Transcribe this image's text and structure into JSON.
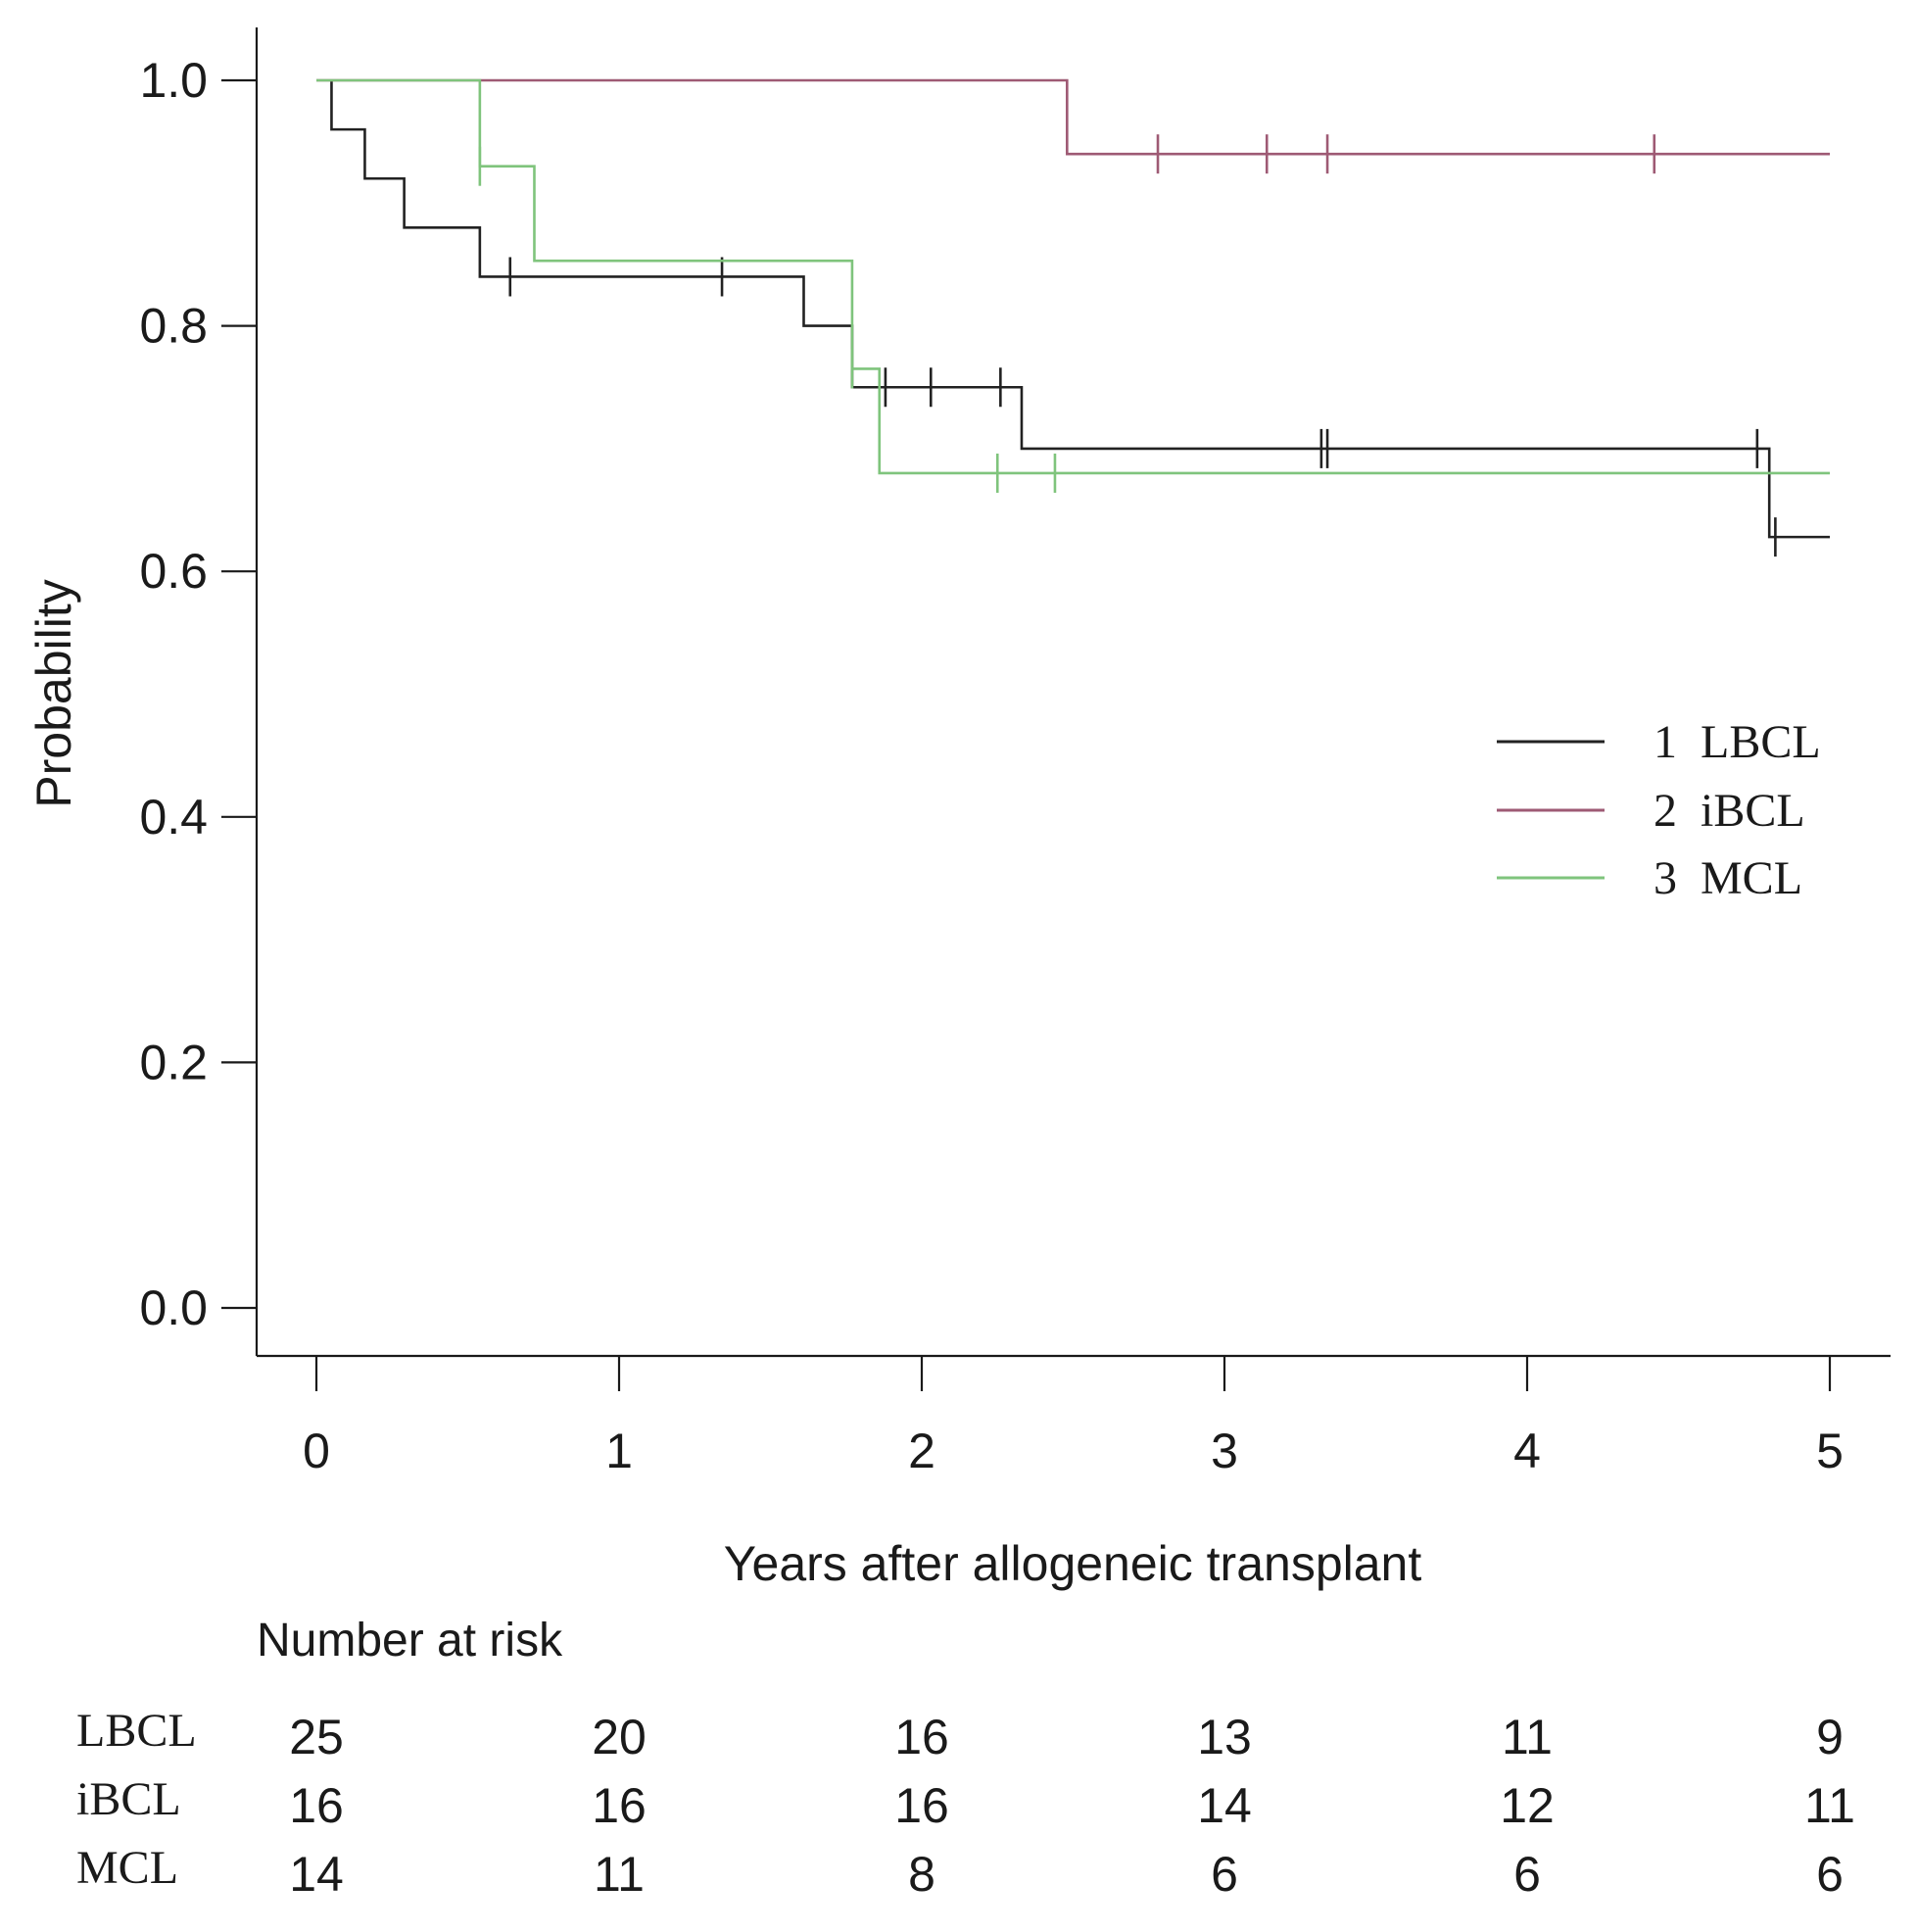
{
  "chart_data": {
    "type": "line",
    "subtype": "kaplan-meier",
    "title": "",
    "xlabel": "Years after allogeneic transplant",
    "ylabel": "Probability",
    "xlim": [
      0,
      5
    ],
    "ylim": [
      0,
      1
    ],
    "x_ticks": [
      0,
      1,
      2,
      3,
      4,
      5
    ],
    "y_ticks": [
      0.0,
      0.2,
      0.4,
      0.6,
      0.8,
      1.0
    ],
    "x_tick_labels": [
      "0",
      "1",
      "2",
      "3",
      "4",
      "5"
    ],
    "y_tick_labels": [
      "0.0",
      "0.2",
      "0.4",
      "0.6",
      "0.8",
      "1.0"
    ],
    "legend_position": "right-middle",
    "series": [
      {
        "name": "LBCL",
        "legend_label": "1  LBCL",
        "color": "#222222",
        "start": 0.05,
        "end": 5.0,
        "steps": [
          {
            "x": 0.05,
            "y": 1.0
          },
          {
            "x": 0.05,
            "y": 0.96
          },
          {
            "x": 0.16,
            "y": 0.92
          },
          {
            "x": 0.29,
            "y": 0.88
          },
          {
            "x": 0.54,
            "y": 0.84
          },
          {
            "x": 1.61,
            "y": 0.8
          },
          {
            "x": 1.77,
            "y": 0.75
          },
          {
            "x": 2.33,
            "y": 0.7
          },
          {
            "x": 4.8,
            "y": 0.628
          }
        ],
        "censored": [
          0.64,
          1.34,
          1.88,
          2.03,
          2.26,
          3.32,
          3.34,
          4.76,
          4.82
        ]
      },
      {
        "name": "iBCL",
        "legend_label": "2  iBCL",
        "color": "#9e5a74",
        "start": 0.0,
        "end": 5.0,
        "steps": [
          {
            "x": 0.0,
            "y": 1.0
          },
          {
            "x": 2.48,
            "y": 0.94
          }
        ],
        "censored": [
          2.78,
          3.14,
          3.34,
          4.42
        ]
      },
      {
        "name": "MCL",
        "legend_label": "3  MCL",
        "color": "#7fc47c",
        "start": 0.0,
        "end": 5.0,
        "steps": [
          {
            "x": 0.0,
            "y": 1.0
          },
          {
            "x": 0.54,
            "y": 0.93
          },
          {
            "x": 0.72,
            "y": 0.853
          },
          {
            "x": 1.77,
            "y": 0.765
          },
          {
            "x": 1.86,
            "y": 0.68
          }
        ],
        "censored": [
          0.54,
          1.77,
          2.25,
          2.44
        ]
      }
    ],
    "risk_table": {
      "title": "Number at risk",
      "times": [
        0,
        1,
        2,
        3,
        4,
        5
      ],
      "rows": [
        {
          "label": "LBCL",
          "values": [
            "25",
            "20",
            "16",
            "13",
            "11",
            "9"
          ]
        },
        {
          "label": "iBCL",
          "values": [
            "16",
            "16",
            "16",
            "14",
            "12",
            "11"
          ]
        },
        {
          "label": "MCL",
          "values": [
            "14",
            "11",
            "8",
            "6",
            "6",
            "6"
          ]
        }
      ]
    }
  }
}
